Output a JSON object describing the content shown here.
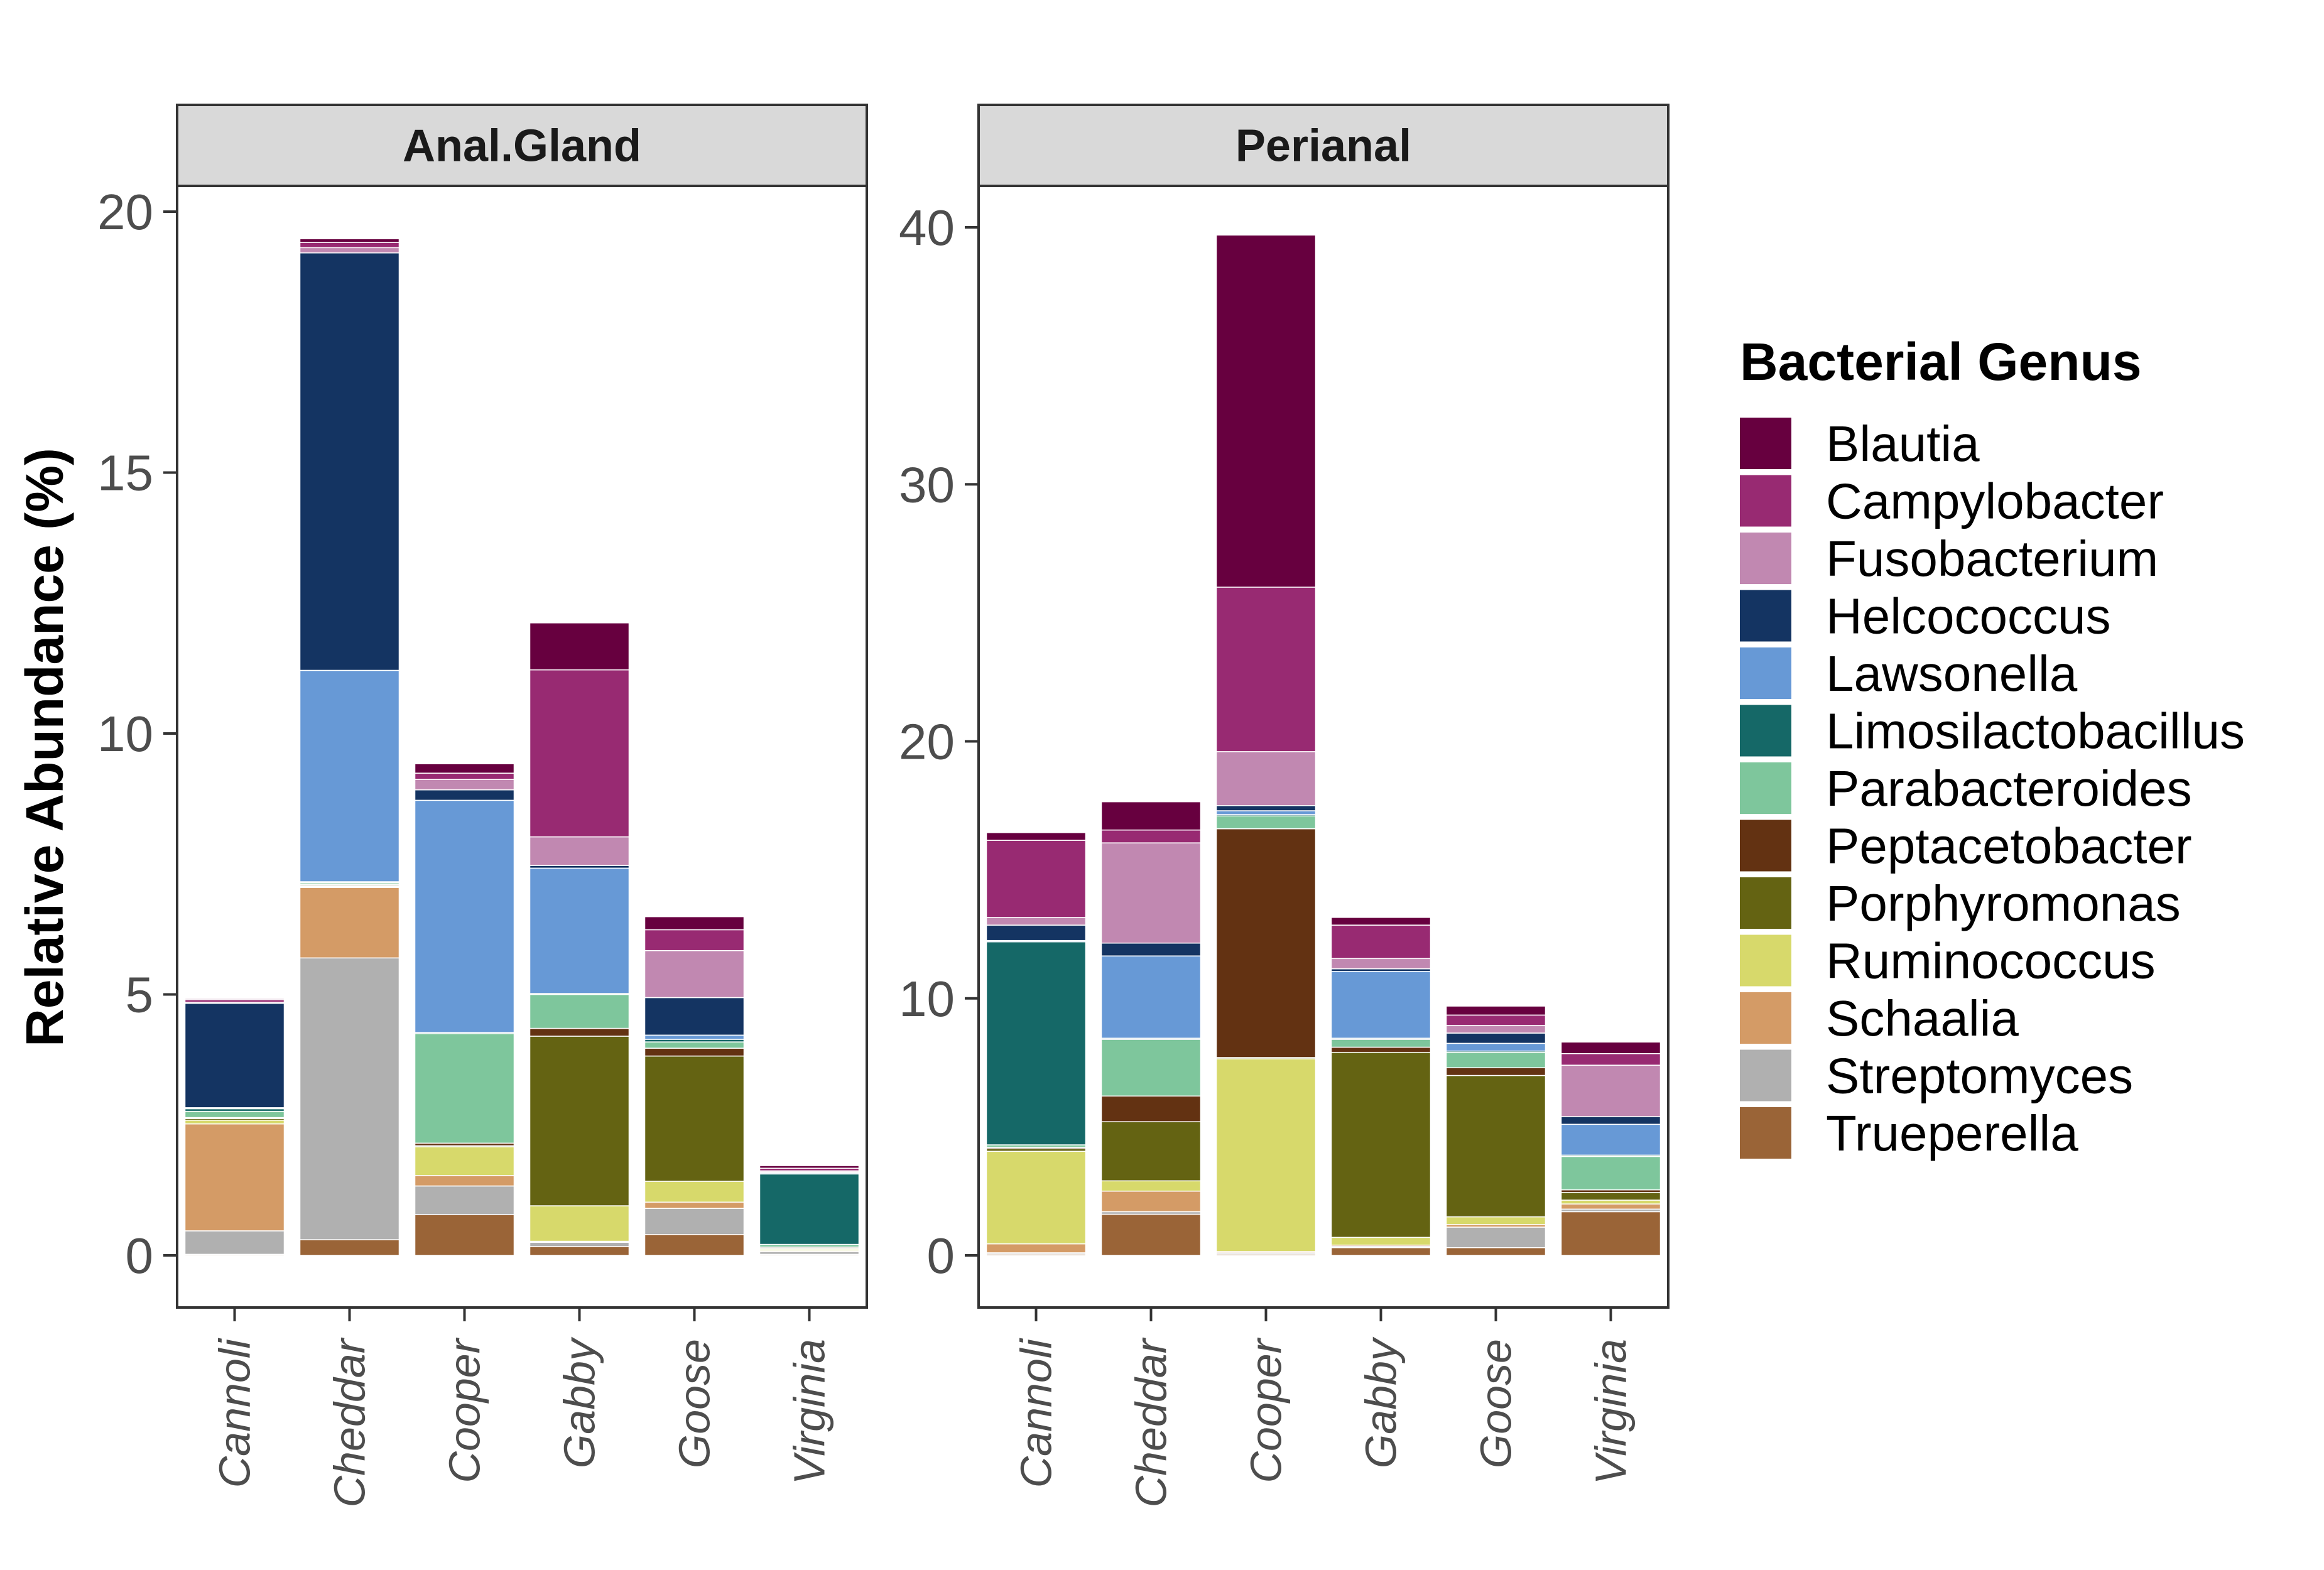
{
  "chart_data": {
    "type": "bar",
    "stacked": true,
    "y_axis_label": "Relative Abundance (%)",
    "legend": {
      "title": "Bacterial Genus",
      "position": "right"
    },
    "categories": [
      "Cannoli",
      "Cheddar",
      "Cooper",
      "Gabby",
      "Goose",
      "Virginia"
    ],
    "genera": [
      {
        "name": "Blautia",
        "color": "#67003f"
      },
      {
        "name": "Campylobacter",
        "color": "#982a72"
      },
      {
        "name": "Fusobacterium",
        "color": "#c188b1"
      },
      {
        "name": "Helcococcus",
        "color": "#143462"
      },
      {
        "name": "Lawsonella",
        "color": "#6799d6"
      },
      {
        "name": "Limosilactobacillus",
        "color": "#156867"
      },
      {
        "name": "Parabacteroides",
        "color": "#7ec69c"
      },
      {
        "name": "Peptacetobacter",
        "color": "#633212"
      },
      {
        "name": "Porphyromonas",
        "color": "#646312"
      },
      {
        "name": "Ruminococcus",
        "color": "#d7d96b"
      },
      {
        "name": "Schaalia",
        "color": "#d49b66"
      },
      {
        "name": "Streptomyces",
        "color": "#b0b0b0"
      },
      {
        "name": "Trueperella",
        "color": "#9a6437"
      }
    ],
    "panels": [
      {
        "title": "Anal.Gland",
        "ylim": [
          0,
          20
        ],
        "yticks": [
          0,
          5,
          10,
          15,
          20
        ],
        "values": {
          "Cannoli": {
            "Blautia": 0.02,
            "Campylobacter": 0.05,
            "Fusobacterium": 0.02,
            "Helcococcus": 2.0,
            "Lawsonella": 0.02,
            "Limosilactobacillus": 0.05,
            "Parabacteroides": 0.12,
            "Peptacetobacter": 0.02,
            "Porphyromonas": 0.03,
            "Ruminococcus": 0.07,
            "Schaalia": 2.05,
            "Streptomyces": 0.45,
            "Trueperella": 0.02
          },
          "Cheddar": {
            "Blautia": 0.07,
            "Campylobacter": 0.1,
            "Fusobacterium": 0.1,
            "Helcococcus": 8.0,
            "Lawsonella": 4.05,
            "Limosilactobacillus": 0.02,
            "Parabacteroides": 0.03,
            "Peptacetobacter": 0.02,
            "Porphyromonas": 0.02,
            "Ruminococcus": 0.02,
            "Schaalia": 1.35,
            "Streptomyces": 5.4,
            "Trueperella": 0.3
          },
          "Cooper": {
            "Blautia": 0.18,
            "Campylobacter": 0.12,
            "Fusobacterium": 0.2,
            "Helcococcus": 0.2,
            "Lawsonella": 4.45,
            "Limosilactobacillus": 0.02,
            "Parabacteroides": 2.1,
            "Peptacetobacter": 0.05,
            "Porphyromonas": 0.02,
            "Ruminococcus": 0.55,
            "Schaalia": 0.2,
            "Streptomyces": 0.55,
            "Trueperella": 0.78
          },
          "Gabby": {
            "Blautia": 0.9,
            "Campylobacter": 3.2,
            "Fusobacterium": 0.55,
            "Helcococcus": 0.05,
            "Lawsonella": 2.4,
            "Limosilactobacillus": 0.02,
            "Parabacteroides": 0.65,
            "Peptacetobacter": 0.15,
            "Porphyromonas": 3.25,
            "Ruminococcus": 0.68,
            "Schaalia": 0.02,
            "Streptomyces": 0.08,
            "Trueperella": 0.17
          },
          "Goose": {
            "Blautia": 0.25,
            "Campylobacter": 0.4,
            "Fusobacterium": 0.9,
            "Helcococcus": 0.72,
            "Lawsonella": 0.08,
            "Limosilactobacillus": 0.05,
            "Parabacteroides": 0.12,
            "Peptacetobacter": 0.15,
            "Porphyromonas": 2.4,
            "Ruminococcus": 0.4,
            "Schaalia": 0.12,
            "Streptomyces": 0.5,
            "Trueperella": 0.4
          },
          "Virginia": {
            "Blautia": 0.05,
            "Campylobacter": 0.05,
            "Fusobacterium": 0.02,
            "Helcococcus": 0.02,
            "Lawsonella": 0.02,
            "Limosilactobacillus": 1.35,
            "Parabacteroides": 0.05,
            "Peptacetobacter": 0.02,
            "Porphyromonas": 0.02,
            "Ruminococcus": 0.03,
            "Schaalia": 0.02,
            "Streptomyces": 0.05,
            "Trueperella": 0.02
          }
        }
      },
      {
        "title": "Perianal",
        "ylim": [
          0,
          40
        ],
        "yticks": [
          0,
          10,
          20,
          30,
          40
        ],
        "values": {
          "Cannoli": {
            "Blautia": 0.3,
            "Campylobacter": 3.0,
            "Fusobacterium": 0.3,
            "Helcococcus": 0.6,
            "Lawsonella": 0.05,
            "Limosilactobacillus": 7.9,
            "Parabacteroides": 0.1,
            "Peptacetobacter": 0.05,
            "Porphyromonas": 0.1,
            "Ruminococcus": 3.6,
            "Schaalia": 0.35,
            "Streptomyces": 0.05,
            "Trueperella": 0.05
          },
          "Cheddar": {
            "Blautia": 1.1,
            "Campylobacter": 0.5,
            "Fusobacterium": 3.9,
            "Helcococcus": 0.5,
            "Lawsonella": 3.2,
            "Limosilactobacillus": 0.05,
            "Parabacteroides": 2.2,
            "Peptacetobacter": 1.0,
            "Porphyromonas": 2.3,
            "Ruminococcus": 0.4,
            "Schaalia": 0.8,
            "Streptomyces": 0.1,
            "Trueperella": 1.6
          },
          "Cooper": {
            "Blautia": 13.7,
            "Campylobacter": 6.4,
            "Fusobacterium": 2.1,
            "Helcococcus": 0.2,
            "Lawsonella": 0.15,
            "Limosilactobacillus": 0.05,
            "Parabacteroides": 0.5,
            "Peptacetobacter": 8.9,
            "Porphyromonas": 0.05,
            "Ruminococcus": 7.5,
            "Schaalia": 0.05,
            "Streptomyces": 0.05,
            "Trueperella": 0.05
          },
          "Gabby": {
            "Blautia": 0.3,
            "Campylobacter": 1.3,
            "Fusobacterium": 0.4,
            "Helcococcus": 0.1,
            "Lawsonella": 2.6,
            "Limosilactobacillus": 0.05,
            "Parabacteroides": 0.3,
            "Peptacetobacter": 0.2,
            "Porphyromonas": 7.2,
            "Ruminococcus": 0.3,
            "Schaalia": 0.05,
            "Streptomyces": 0.05,
            "Trueperella": 0.3
          },
          "Goose": {
            "Blautia": 0.35,
            "Campylobacter": 0.4,
            "Fusobacterium": 0.3,
            "Helcococcus": 0.4,
            "Lawsonella": 0.3,
            "Limosilactobacillus": 0.05,
            "Parabacteroides": 0.6,
            "Peptacetobacter": 0.3,
            "Porphyromonas": 5.5,
            "Ruminococcus": 0.3,
            "Schaalia": 0.1,
            "Streptomyces": 0.8,
            "Trueperella": 0.3
          },
          "Virginia": {
            "Blautia": 0.45,
            "Campylobacter": 0.45,
            "Fusobacterium": 2.0,
            "Helcococcus": 0.3,
            "Lawsonella": 1.2,
            "Limosilactobacillus": 0.05,
            "Parabacteroides": 1.3,
            "Peptacetobacter": 0.1,
            "Porphyromonas": 0.3,
            "Ruminococcus": 0.15,
            "Schaalia": 0.2,
            "Streptomyces": 0.1,
            "Trueperella": 1.7
          }
        }
      }
    ]
  }
}
